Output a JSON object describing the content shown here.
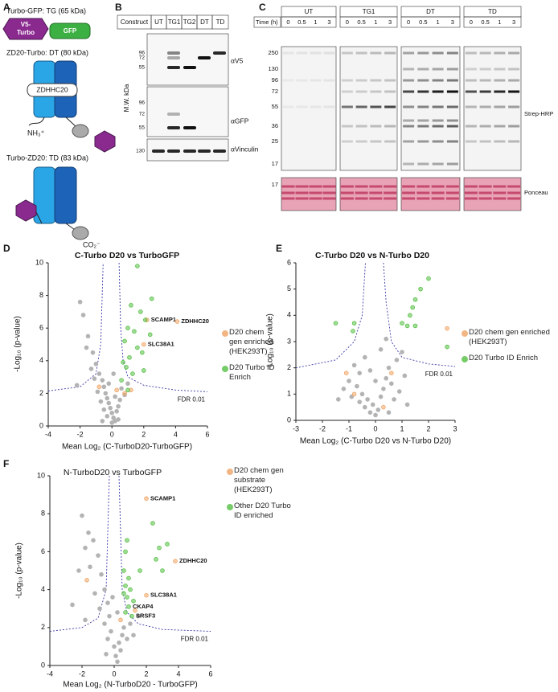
{
  "panel_labels": [
    "A",
    "B",
    "C",
    "D",
    "E",
    "F"
  ],
  "schematic": {
    "tg_title": "Turbo-GFP: TG (65 kDa)",
    "v5_turbo": [
      "V5-",
      "Turbo"
    ],
    "gfp": "GFP",
    "dt_title": "ZD20-Turbo: DT (80 kDa)",
    "zdhhc20": "ZDHHC20",
    "n_term": "NH₃⁺",
    "td_title": "Turbo-ZD20: TD (83 kDa)",
    "c_term": "CO₂⁻"
  },
  "blot_b": {
    "header": [
      "Construct",
      "UT",
      "TG1",
      "TG2",
      "DT",
      "TD"
    ],
    "mw_label": "M.W. kDa",
    "panels": [
      {
        "markers": [
          "96",
          "72",
          "55"
        ],
        "antibody": "αV5"
      },
      {
        "markers": [
          "96",
          "72",
          "55"
        ],
        "antibody": "αGFP"
      },
      {
        "markers": [
          "130"
        ],
        "antibody": "αVinculin"
      }
    ]
  },
  "blot_c": {
    "groups": [
      "UT",
      "TG1",
      "DT",
      "TD"
    ],
    "time_label": "Time (h)",
    "timepoints": [
      "0",
      "0.5",
      "1",
      "3"
    ],
    "markers": [
      "250",
      "130",
      "96",
      "72",
      "55",
      "36",
      "25",
      "17"
    ],
    "detection": "Strep-HRP",
    "ponceau_markers": [
      "17"
    ],
    "ponceau": "Ponceau"
  },
  "chart_data": [
    {
      "type": "scatter",
      "title": "C-Turbo D20 vs TurboGFP",
      "x_label": "Mean Log₂ (C-TurboD20-TurboGFP)",
      "y_label": "-Log₁₀ (p-value)",
      "xlim": [
        -4,
        6
      ],
      "ylim": [
        0,
        10
      ],
      "xticks": [
        -4,
        -2,
        0,
        2,
        4,
        6
      ],
      "yticks": [
        0,
        2,
        4,
        6,
        8,
        10
      ],
      "series": [
        {
          "color": "#b3b3b3",
          "x": [
            -2,
            -1.8,
            -1.5,
            -1.2,
            -1,
            -0.8,
            -0.6,
            -0.5,
            -0.4,
            -0.3,
            -0.2,
            -0.1,
            0,
            0.1,
            0.2,
            0.3,
            0.4,
            0.5,
            -1.6,
            -1.3,
            -0.7,
            -0.5,
            -0.3,
            0,
            0.2,
            0.6,
            -0.9,
            -1.1,
            0.8,
            1,
            -0.2,
            0.1,
            -2.2,
            0.4,
            -0.6
          ],
          "values": [
            7.6,
            6.8,
            5.5,
            4.5,
            3.8,
            3.2,
            2.8,
            2.4,
            2,
            1.7,
            1.4,
            1.1,
            0.8,
            0.5,
            0.3,
            0.9,
            1.2,
            1.6,
            4.8,
            3.5,
            1.5,
            1,
            0.6,
            0.2,
            1.8,
            2.3,
            2.1,
            2.9,
            1.9,
            2.6,
            2.6,
            3.2,
            2.5,
            0.4,
            0.3
          ]
        },
        {
          "name": "D20 chem gen enriched (HEK293T)",
          "color": "#f0a566",
          "x": [
            2.2,
            4.1,
            2.0,
            -0.8,
            0.3,
            0.8,
            1.2
          ],
          "values": [
            6.5,
            6.4,
            5.0,
            2.4,
            2.2,
            2.0,
            2.2
          ],
          "point_labels": [
            "SCAMP1",
            "ZDHHC20",
            "SLC38A1",
            null,
            null,
            null,
            null
          ]
        },
        {
          "name": "D20 Turbo ID Enrich",
          "color": "#55c043",
          "x": [
            1.6,
            2.5,
            1.2,
            1.8,
            2.1,
            1,
            1.4,
            2.4,
            0.8,
            1.6,
            1.9,
            1.1,
            0.9,
            1.3,
            2.0,
            0.6,
            1.0,
            0.7
          ],
          "values": [
            9.8,
            7.8,
            7.4,
            7,
            6.5,
            6,
            5.8,
            5.6,
            5.2,
            4.8,
            4.5,
            4.2,
            3.6,
            3.2,
            3.4,
            2.8,
            2.2,
            3.9
          ]
        }
      ],
      "threshold": [
        {
          "x": [
            -4,
            -2,
            -1,
            -0.7,
            -0.55
          ],
          "values": [
            2.15,
            2.4,
            3.2,
            5,
            10
          ]
        },
        {
          "x": [
            0.45,
            0.55,
            0.7,
            1,
            2,
            4,
            6
          ],
          "values": [
            10,
            6,
            4,
            3,
            2.5,
            2.2,
            2.1
          ]
        }
      ],
      "threshold_label": "FDR 0.01"
    },
    {
      "type": "scatter",
      "title": "C-Turbo D20 vs N-Turbo D20",
      "x_label": "Mean Log₂ (C-Turbo D20 vs N-Turbo D20)",
      "y_label": "-Log₁₀ (p-value)",
      "xlim": [
        -3,
        3
      ],
      "ylim": [
        0,
        6
      ],
      "xticks": [
        -3,
        -2,
        -1,
        0,
        1,
        2,
        3
      ],
      "yticks": [
        0,
        1,
        2,
        3,
        4,
        5,
        6
      ],
      "series": [
        {
          "color": "#b3b3b3",
          "x": [
            -1.2,
            -1,
            -0.9,
            -0.7,
            -0.6,
            -0.5,
            -0.4,
            -0.3,
            -0.2,
            -0.1,
            0,
            0.1,
            0.2,
            0.3,
            0.4,
            0.5,
            0.6,
            0.7,
            0.8,
            0.9,
            1.0,
            1.1,
            -0.8,
            -0.6,
            -0.4,
            0.0,
            0.2,
            -1.4,
            0.5,
            -0.2,
            0.4,
            1.2
          ],
          "values": [
            1.2,
            1.5,
            0.9,
            1.3,
            0.7,
            1.0,
            0.5,
            0.8,
            0.3,
            0.6,
            0.2,
            0.4,
            0.9,
            1.2,
            1.6,
            2.0,
            1.4,
            0.8,
            2.3,
            1.1,
            2.6,
            1.7,
            2.1,
            1.8,
            2.4,
            1.5,
            2.7,
            0.8,
            0.3,
            1.9,
            3.1,
            0.6
          ]
        },
        {
          "name": "D20 chem gen enriched (HEK293T)",
          "color": "#f0a566",
          "x": [
            2.7,
            -1.1,
            -0.8,
            0.6,
            0.3
          ],
          "values": [
            3.5,
            1.8,
            1.0,
            1.8,
            0.5
          ]
        },
        {
          "name": "D20 Turbo ID Enrich",
          "color": "#55c043",
          "x": [
            -1.5,
            -0.8,
            -0.85,
            1.0,
            1.2,
            1.5,
            1.3,
            1.4,
            1.5,
            1.7,
            2.0,
            2.7
          ],
          "values": [
            3.7,
            3.7,
            3.4,
            3.7,
            3.6,
            3.6,
            4.0,
            4.3,
            4.6,
            5.0,
            5.4,
            2.8
          ]
        }
      ],
      "threshold": [
        {
          "x": [
            -3,
            -1.5,
            -0.8,
            -0.5,
            -0.38
          ],
          "values": [
            2.0,
            2.3,
            3,
            4,
            6
          ]
        },
        {
          "x": [
            0.3,
            0.4,
            0.6,
            1,
            2,
            3
          ],
          "values": [
            6,
            4.5,
            3,
            2.4,
            2.15,
            2.05
          ]
        }
      ],
      "threshold_label": "FDR 0.01"
    },
    {
      "type": "scatter",
      "title": "N-TurboD20 vs TurboGFP",
      "x_label": "Mean Log₂ (N-TurboD20 - TurboGFP)",
      "y_label": "-Log₁₀ (p-value)",
      "xlim": [
        -4,
        6
      ],
      "ylim": [
        0,
        10
      ],
      "xticks": [
        -4,
        -2,
        0,
        2,
        4,
        6
      ],
      "yticks": [
        0,
        2,
        4,
        6,
        8,
        10
      ],
      "series": [
        {
          "color": "#b3b3b3",
          "x": [
            -2.0,
            -1.6,
            -1.8,
            -1.3,
            -1.0,
            -2.2,
            -1.5,
            -0.8,
            -0.6,
            -1.2,
            -0.4,
            -0.9,
            -0.3,
            -0.6,
            -0.2,
            -0.4,
            0,
            0.1,
            0.2,
            0.3,
            0.5,
            0.6,
            0.8,
            1.0,
            1.2,
            -0.1,
            0.2,
            -2.6,
            -1.8,
            -0.5,
            1.5,
            0.4
          ],
          "values": [
            7.9,
            7.0,
            6.2,
            6.6,
            5.8,
            5.0,
            5.2,
            4.8,
            4.0,
            3.8,
            3.3,
            3.0,
            2.6,
            2.2,
            1.8,
            1.4,
            1.0,
            0.5,
            0.2,
            1.2,
            1.6,
            2.0,
            1.4,
            2.2,
            1.6,
            3.6,
            2.8,
            3.2,
            2.4,
            0.6,
            2.6,
            0.8
          ]
        },
        {
          "name": "D20 chem gen substrate (HEK293T)",
          "color": "#f0a566",
          "x": [
            2.0,
            3.8,
            2.0,
            -1.7,
            0.4,
            1.3
          ],
          "values": [
            8.8,
            5.5,
            3.7,
            4.5,
            2.4,
            2.9
          ],
          "point_labels": [
            "SCAMP1",
            "ZDHHC20",
            "SLC38A1",
            null,
            null,
            null
          ]
        },
        {
          "name": "Other D20 Turbo ID enriched",
          "color": "#55c043",
          "x": [
            2.4,
            3.3,
            2.8,
            2.6,
            3.0,
            1.6,
            0.8,
            0.7,
            0.6,
            0.9,
            0.7,
            1.0,
            0.8,
            1.2,
            0.9,
            0.7,
            1.1,
            0.6
          ],
          "values": [
            7.5,
            6.4,
            6.2,
            5.6,
            5.0,
            5.0,
            6.6,
            6.0,
            5.0,
            4.6,
            4.2,
            4.0,
            3.6,
            3.4,
            3.1,
            2.8,
            2.6,
            3.8
          ],
          "point_labels": [
            null,
            null,
            null,
            null,
            null,
            null,
            null,
            null,
            null,
            null,
            null,
            null,
            null,
            null,
            "CKAP4",
            null,
            "SRSF3",
            null
          ]
        }
      ],
      "threshold": [
        {
          "x": [
            -4,
            -2,
            -1,
            -0.5,
            -0.3
          ],
          "values": [
            1.8,
            2.0,
            2.5,
            4,
            10
          ]
        },
        {
          "x": [
            0.3,
            0.5,
            0.8,
            1.5,
            3,
            6
          ],
          "values": [
            10,
            4,
            2.8,
            2.2,
            1.9,
            1.8
          ]
        }
      ],
      "threshold_label": "FDR 0.01"
    }
  ]
}
